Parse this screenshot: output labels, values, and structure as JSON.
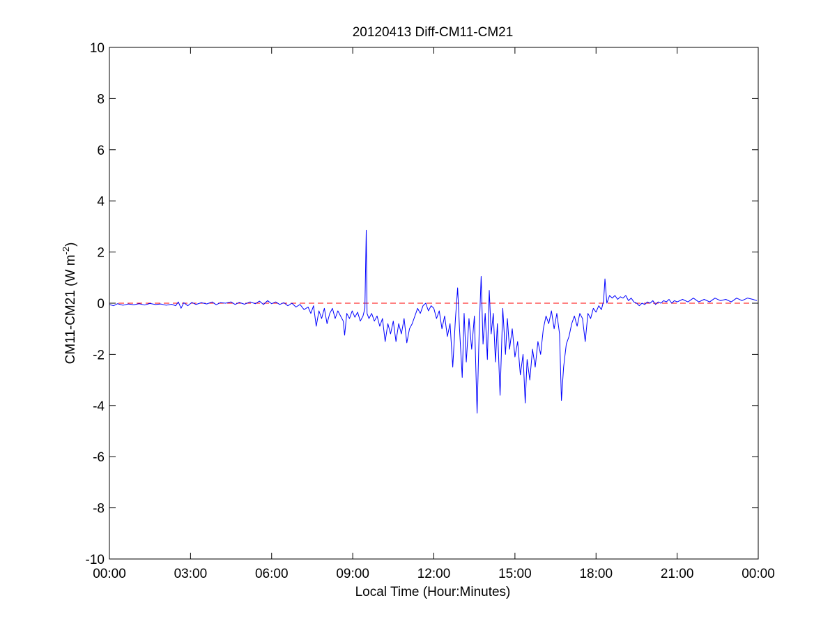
{
  "chart_data": {
    "type": "line",
    "title": "20120413 Diff-CM11-CM21",
    "xlabel": "Local Time (Hour:Minutes)",
    "ylabel_main": "CM11-CM21 (W m",
    "ylabel_sup": "-2",
    "ylabel_close": ")",
    "xlim": [
      0,
      24
    ],
    "ylim": [
      -10,
      10
    ],
    "x_ticks": [
      {
        "value": 0,
        "label": "00:00"
      },
      {
        "value": 3,
        "label": "03:00"
      },
      {
        "value": 6,
        "label": "06:00"
      },
      {
        "value": 9,
        "label": "09:00"
      },
      {
        "value": 12,
        "label": "12:00"
      },
      {
        "value": 15,
        "label": "15:00"
      },
      {
        "value": 18,
        "label": "18:00"
      },
      {
        "value": 21,
        "label": "21:00"
      },
      {
        "value": 24,
        "label": "00:00"
      }
    ],
    "y_ticks": [
      {
        "value": 10,
        "label": "10"
      },
      {
        "value": 8,
        "label": "8"
      },
      {
        "value": 6,
        "label": "6"
      },
      {
        "value": 4,
        "label": "4"
      },
      {
        "value": 2,
        "label": "2"
      },
      {
        "value": 0,
        "label": "0"
      },
      {
        "value": -2,
        "label": "-2"
      },
      {
        "value": -4,
        "label": "-4"
      },
      {
        "value": -6,
        "label": "-6"
      },
      {
        "value": -8,
        "label": "-8"
      },
      {
        "value": -10,
        "label": "-10"
      }
    ],
    "grid": false,
    "reference_line": {
      "y": 0,
      "color": "#ff0000",
      "style": "dashed"
    },
    "series": [
      {
        "color": "#0000ff",
        "points": [
          [
            0.0,
            -0.05
          ],
          [
            0.15,
            -0.1
          ],
          [
            0.3,
            -0.02
          ],
          [
            0.5,
            -0.08
          ],
          [
            0.7,
            -0.03
          ],
          [
            0.9,
            -0.06
          ],
          [
            1.1,
            -0.02
          ],
          [
            1.3,
            -0.07
          ],
          [
            1.5,
            -0.01
          ],
          [
            1.7,
            -0.05
          ],
          [
            1.9,
            -0.03
          ],
          [
            2.1,
            -0.08
          ],
          [
            2.3,
            -0.04
          ],
          [
            2.45,
            -0.1
          ],
          [
            2.55,
            0.05
          ],
          [
            2.65,
            -0.2
          ],
          [
            2.75,
            0.02
          ],
          [
            2.9,
            -0.1
          ],
          [
            3.05,
            0.03
          ],
          [
            3.2,
            -0.05
          ],
          [
            3.4,
            0.02
          ],
          [
            3.6,
            -0.03
          ],
          [
            3.8,
            0.05
          ],
          [
            3.95,
            -0.06
          ],
          [
            4.1,
            0.02
          ],
          [
            4.3,
            0.0
          ],
          [
            4.5,
            0.05
          ],
          [
            4.65,
            -0.05
          ],
          [
            4.8,
            0.03
          ],
          [
            5.0,
            -0.04
          ],
          [
            5.2,
            0.05
          ],
          [
            5.4,
            -0.02
          ],
          [
            5.55,
            0.08
          ],
          [
            5.7,
            -0.05
          ],
          [
            5.85,
            0.1
          ],
          [
            6.0,
            -0.02
          ],
          [
            6.15,
            0.05
          ],
          [
            6.3,
            -0.05
          ],
          [
            6.45,
            0.02
          ],
          [
            6.6,
            -0.1
          ],
          [
            6.75,
            0.0
          ],
          [
            6.9,
            -0.15
          ],
          [
            7.05,
            -0.05
          ],
          [
            7.2,
            -0.25
          ],
          [
            7.35,
            -0.15
          ],
          [
            7.45,
            -0.4
          ],
          [
            7.55,
            -0.1
          ],
          [
            7.65,
            -0.9
          ],
          [
            7.75,
            -0.3
          ],
          [
            7.85,
            -0.6
          ],
          [
            7.95,
            -0.2
          ],
          [
            8.05,
            -0.8
          ],
          [
            8.15,
            -0.4
          ],
          [
            8.25,
            -0.2
          ],
          [
            8.35,
            -0.6
          ],
          [
            8.45,
            -0.3
          ],
          [
            8.55,
            -0.5
          ],
          [
            8.65,
            -0.7
          ],
          [
            8.7,
            -1.25
          ],
          [
            8.78,
            -0.4
          ],
          [
            8.88,
            -0.6
          ],
          [
            8.98,
            -0.3
          ],
          [
            9.08,
            -0.55
          ],
          [
            9.18,
            -0.35
          ],
          [
            9.28,
            -0.7
          ],
          [
            9.38,
            -0.5
          ],
          [
            9.45,
            -0.2
          ],
          [
            9.5,
            2.85
          ],
          [
            9.53,
            -0.4
          ],
          [
            9.6,
            -0.6
          ],
          [
            9.7,
            -0.4
          ],
          [
            9.8,
            -0.7
          ],
          [
            9.9,
            -0.5
          ],
          [
            10.0,
            -0.9
          ],
          [
            10.1,
            -0.6
          ],
          [
            10.2,
            -1.5
          ],
          [
            10.3,
            -0.8
          ],
          [
            10.4,
            -1.2
          ],
          [
            10.5,
            -0.7
          ],
          [
            10.6,
            -1.5
          ],
          [
            10.7,
            -0.8
          ],
          [
            10.8,
            -1.2
          ],
          [
            10.9,
            -0.6
          ],
          [
            11.0,
            -1.55
          ],
          [
            11.1,
            -1.0
          ],
          [
            11.2,
            -0.8
          ],
          [
            11.3,
            -0.5
          ],
          [
            11.4,
            -0.2
          ],
          [
            11.5,
            -0.4
          ],
          [
            11.6,
            -0.1
          ],
          [
            11.7,
            0.0
          ],
          [
            11.8,
            -0.3
          ],
          [
            11.9,
            -0.1
          ],
          [
            12.0,
            -0.2
          ],
          [
            12.1,
            -0.6
          ],
          [
            12.2,
            -0.3
          ],
          [
            12.3,
            -1.0
          ],
          [
            12.4,
            -0.5
          ],
          [
            12.5,
            -1.3
          ],
          [
            12.6,
            -0.8
          ],
          [
            12.7,
            -2.5
          ],
          [
            12.8,
            -0.6
          ],
          [
            12.88,
            0.6
          ],
          [
            12.95,
            -1.0
          ],
          [
            13.05,
            -2.9
          ],
          [
            13.12,
            -0.4
          ],
          [
            13.2,
            -2.3
          ],
          [
            13.3,
            -0.6
          ],
          [
            13.4,
            -1.8
          ],
          [
            13.5,
            -0.5
          ],
          [
            13.6,
            -4.3
          ],
          [
            13.68,
            -1.0
          ],
          [
            13.75,
            1.05
          ],
          [
            13.82,
            -1.6
          ],
          [
            13.9,
            -0.4
          ],
          [
            13.98,
            -2.2
          ],
          [
            14.05,
            0.5
          ],
          [
            14.12,
            -1.2
          ],
          [
            14.2,
            -0.4
          ],
          [
            14.28,
            -2.3
          ],
          [
            14.35,
            -0.8
          ],
          [
            14.45,
            -3.6
          ],
          [
            14.55,
            -0.2
          ],
          [
            14.65,
            -2.0
          ],
          [
            14.72,
            -0.6
          ],
          [
            14.8,
            -1.8
          ],
          [
            14.9,
            -1.0
          ],
          [
            15.0,
            -2.1
          ],
          [
            15.1,
            -1.5
          ],
          [
            15.2,
            -2.8
          ],
          [
            15.3,
            -2.0
          ],
          [
            15.38,
            -3.9
          ],
          [
            15.45,
            -2.2
          ],
          [
            15.55,
            -3.0
          ],
          [
            15.65,
            -1.8
          ],
          [
            15.75,
            -2.5
          ],
          [
            15.85,
            -1.5
          ],
          [
            15.95,
            -2.0
          ],
          [
            16.05,
            -1.0
          ],
          [
            16.15,
            -0.5
          ],
          [
            16.25,
            -0.8
          ],
          [
            16.35,
            -0.3
          ],
          [
            16.45,
            -1.0
          ],
          [
            16.55,
            -0.4
          ],
          [
            16.65,
            -1.2
          ],
          [
            16.72,
            -3.8
          ],
          [
            16.8,
            -2.5
          ],
          [
            16.9,
            -1.6
          ],
          [
            17.0,
            -1.3
          ],
          [
            17.1,
            -0.8
          ],
          [
            17.2,
            -0.5
          ],
          [
            17.3,
            -0.9
          ],
          [
            17.4,
            -0.4
          ],
          [
            17.5,
            -0.6
          ],
          [
            17.6,
            -1.5
          ],
          [
            17.7,
            -0.4
          ],
          [
            17.8,
            -0.6
          ],
          [
            17.9,
            -0.2
          ],
          [
            18.0,
            -0.35
          ],
          [
            18.1,
            -0.1
          ],
          [
            18.2,
            -0.25
          ],
          [
            18.28,
            0.1
          ],
          [
            18.33,
            0.95
          ],
          [
            18.4,
            0.0
          ],
          [
            18.5,
            0.3
          ],
          [
            18.6,
            0.2
          ],
          [
            18.7,
            0.3
          ],
          [
            18.8,
            0.15
          ],
          [
            18.9,
            0.25
          ],
          [
            19.0,
            0.2
          ],
          [
            19.1,
            0.3
          ],
          [
            19.2,
            0.1
          ],
          [
            19.3,
            0.2
          ],
          [
            19.4,
            0.05
          ],
          [
            19.5,
            0.0
          ],
          [
            19.6,
            -0.1
          ],
          [
            19.7,
            0.0
          ],
          [
            19.8,
            -0.05
          ],
          [
            19.9,
            0.05
          ],
          [
            20.0,
            0.0
          ],
          [
            20.1,
            0.1
          ],
          [
            20.2,
            -0.05
          ],
          [
            20.3,
            0.05
          ],
          [
            20.4,
            0.0
          ],
          [
            20.5,
            0.1
          ],
          [
            20.6,
            0.05
          ],
          [
            20.7,
            0.15
          ],
          [
            20.8,
            0.0
          ],
          [
            20.9,
            0.1
          ],
          [
            21.0,
            0.05
          ],
          [
            21.2,
            0.15
          ],
          [
            21.4,
            0.05
          ],
          [
            21.6,
            0.2
          ],
          [
            21.8,
            0.05
          ],
          [
            22.0,
            0.15
          ],
          [
            22.2,
            0.05
          ],
          [
            22.4,
            0.2
          ],
          [
            22.6,
            0.1
          ],
          [
            22.8,
            0.15
          ],
          [
            23.0,
            0.05
          ],
          [
            23.2,
            0.2
          ],
          [
            23.4,
            0.1
          ],
          [
            23.6,
            0.2
          ],
          [
            23.8,
            0.15
          ],
          [
            23.95,
            0.1
          ]
        ]
      }
    ]
  },
  "colors": {
    "series_line": "#0000ff",
    "reference_line": "#ff0000",
    "axes": "#000000",
    "background": "#ffffff"
  }
}
